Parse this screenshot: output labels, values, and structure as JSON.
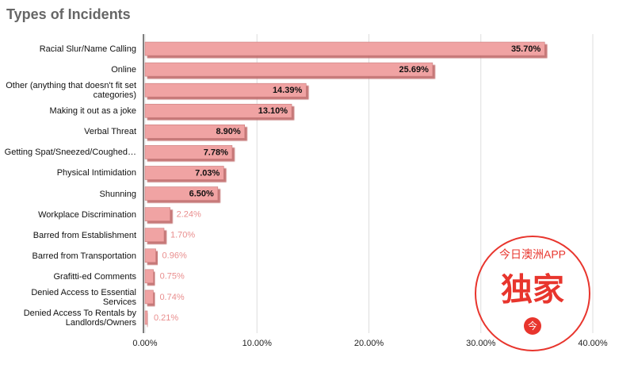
{
  "chart_data": {
    "type": "barh",
    "title": "Types of Incidents",
    "categories": [
      "Racial Slur/Name Calling",
      "Online",
      "Other (anything that doesn't fit set categories)",
      "Making it out as a joke",
      "Verbal Threat",
      "Getting Spat/Sneezed/Coughed…",
      "Physical Intimidation",
      "Shunning",
      "Workplace Discrimination",
      "Barred from Establishment",
      "Barred from Transportation",
      "Grafitti-ed Comments",
      "Denied Access to Essential Services",
      "Denied Access To Rentals by Landlords/Owners"
    ],
    "values": [
      35.7,
      25.69,
      14.39,
      13.1,
      8.9,
      7.78,
      7.03,
      6.5,
      2.24,
      1.7,
      0.96,
      0.75,
      0.74,
      0.21
    ],
    "value_labels": [
      "35.70%",
      "25.69%",
      "14.39%",
      "13.10%",
      "8.90%",
      "7.78%",
      "7.03%",
      "6.50%",
      "2.24%",
      "1.70%",
      "0.96%",
      "0.75%",
      "0.74%",
      "0.21%"
    ],
    "color": "#f0a3a3",
    "xlim": [
      0,
      40
    ],
    "xticks": [
      {
        "value": 0,
        "label": "0.00%"
      },
      {
        "value": 10,
        "label": "10.00%"
      },
      {
        "value": 20,
        "label": "20.00%"
      },
      {
        "value": 30,
        "label": "30.00%"
      },
      {
        "value": 40,
        "label": "40.00%"
      }
    ],
    "grid": true
  },
  "watermark": {
    "top": "今日澳洲APP",
    "main": "独家",
    "icon": "今"
  }
}
